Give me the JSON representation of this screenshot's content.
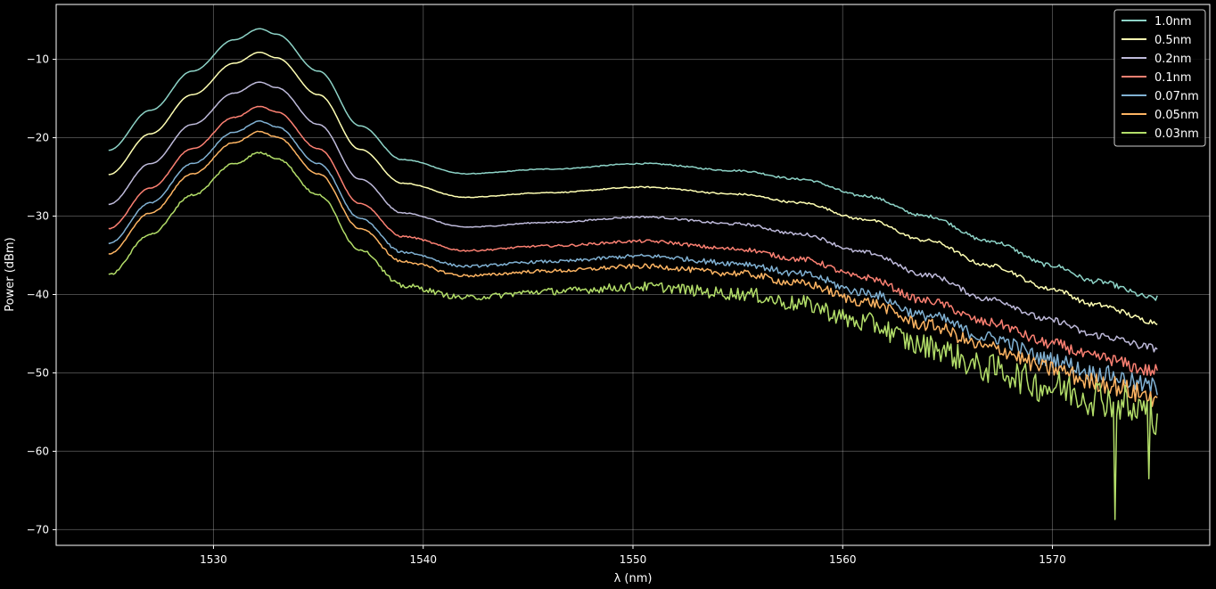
{
  "chart_data": {
    "type": "line",
    "title": "",
    "xlabel": "λ (nm)",
    "ylabel": "Power (dBm)",
    "xlim": [
      1522.5,
      1577.5
    ],
    "ylim": [
      -72,
      -3
    ],
    "xticks": [
      1530,
      1540,
      1550,
      1560,
      1570
    ],
    "xtick_labels": [
      "1530",
      "1540",
      "1550",
      "1560",
      "1570"
    ],
    "yticks": [
      -10,
      -20,
      -30,
      -40,
      -50,
      -60,
      -70
    ],
    "ytick_labels": [
      "−10",
      "−20",
      "−30",
      "−40",
      "−50",
      "−60",
      "−70"
    ],
    "grid": true,
    "legend_position": "top-right",
    "background": "#000000",
    "foreground": "#ffffff",
    "x": [
      1525,
      1527,
      1529,
      1531,
      1532.2,
      1533,
      1535,
      1537,
      1539,
      1542,
      1546,
      1550.5,
      1555,
      1558,
      1561,
      1564,
      1567,
      1570,
      1572,
      1575
    ],
    "series": [
      {
        "name": "1.0nm",
        "color": "#8dd3c7",
        "noise": 0.1,
        "values": [
          -21.6,
          -16.5,
          -11.5,
          -7.5,
          -6.1,
          -6.8,
          -11.5,
          -18.5,
          -22.8,
          -24.6,
          -24.0,
          -23.3,
          -24.2,
          -25.3,
          -27.4,
          -30.0,
          -33.2,
          -36.3,
          -38.3,
          -40.5
        ]
      },
      {
        "name": "0.5nm",
        "color": "#ffffb3",
        "noise": 0.1,
        "values": [
          -24.7,
          -19.5,
          -14.5,
          -10.5,
          -9.1,
          -9.8,
          -14.5,
          -21.5,
          -25.8,
          -27.6,
          -27.0,
          -26.3,
          -27.2,
          -28.3,
          -30.4,
          -33.1,
          -36.3,
          -39.3,
          -41.3,
          -43.5
        ]
      },
      {
        "name": "0.2nm",
        "color": "#bebada",
        "noise": 0.15,
        "values": [
          -28.5,
          -23.3,
          -18.3,
          -14.3,
          -12.9,
          -13.6,
          -18.3,
          -25.3,
          -29.6,
          -31.4,
          -30.8,
          -30.1,
          -31.0,
          -32.3,
          -34.6,
          -37.5,
          -40.6,
          -43.3,
          -45.2,
          -46.8
        ]
      },
      {
        "name": "0.1nm",
        "color": "#fb8072",
        "noise": 0.25,
        "values": [
          -31.6,
          -26.4,
          -21.4,
          -17.4,
          -16.0,
          -16.7,
          -21.4,
          -28.4,
          -32.6,
          -34.4,
          -33.8,
          -33.2,
          -34.2,
          -35.5,
          -37.8,
          -40.8,
          -43.6,
          -46.3,
          -48.0,
          -49.8
        ]
      },
      {
        "name": "0.07nm",
        "color": "#80b1d3",
        "noise": 0.35,
        "values": [
          -33.5,
          -28.3,
          -23.3,
          -19.3,
          -17.9,
          -18.6,
          -23.3,
          -30.3,
          -34.6,
          -36.4,
          -35.8,
          -35.1,
          -36.0,
          -37.4,
          -39.7,
          -42.7,
          -45.5,
          -48.3,
          -50.0,
          -51.8
        ]
      },
      {
        "name": "0.05nm",
        "color": "#fdb462",
        "noise": 0.4,
        "values": [
          -34.8,
          -29.6,
          -24.6,
          -20.6,
          -19.2,
          -19.9,
          -24.6,
          -31.6,
          -35.8,
          -37.6,
          -37.0,
          -36.4,
          -37.3,
          -38.6,
          -40.9,
          -43.9,
          -46.8,
          -49.5,
          -51.2,
          -53.0
        ]
      },
      {
        "name": "0.03nm",
        "color": "#b3de69",
        "noise": 0.8,
        "values": [
          -37.5,
          -32.3,
          -27.3,
          -23.3,
          -21.9,
          -22.6,
          -27.3,
          -34.3,
          -38.9,
          -40.4,
          -39.6,
          -39.0,
          -39.9,
          -41.2,
          -43.6,
          -46.6,
          -49.5,
          -51.8,
          -53.0,
          -55.0
        ]
      }
    ],
    "spikes": [
      {
        "series": "0.03nm",
        "x": 1573.0,
        "y": -68.7
      },
      {
        "series": "0.03nm",
        "x": 1574.6,
        "y": -63.5
      },
      {
        "series": "0.03nm",
        "x": 1573.8,
        "y": -56.0
      }
    ]
  }
}
